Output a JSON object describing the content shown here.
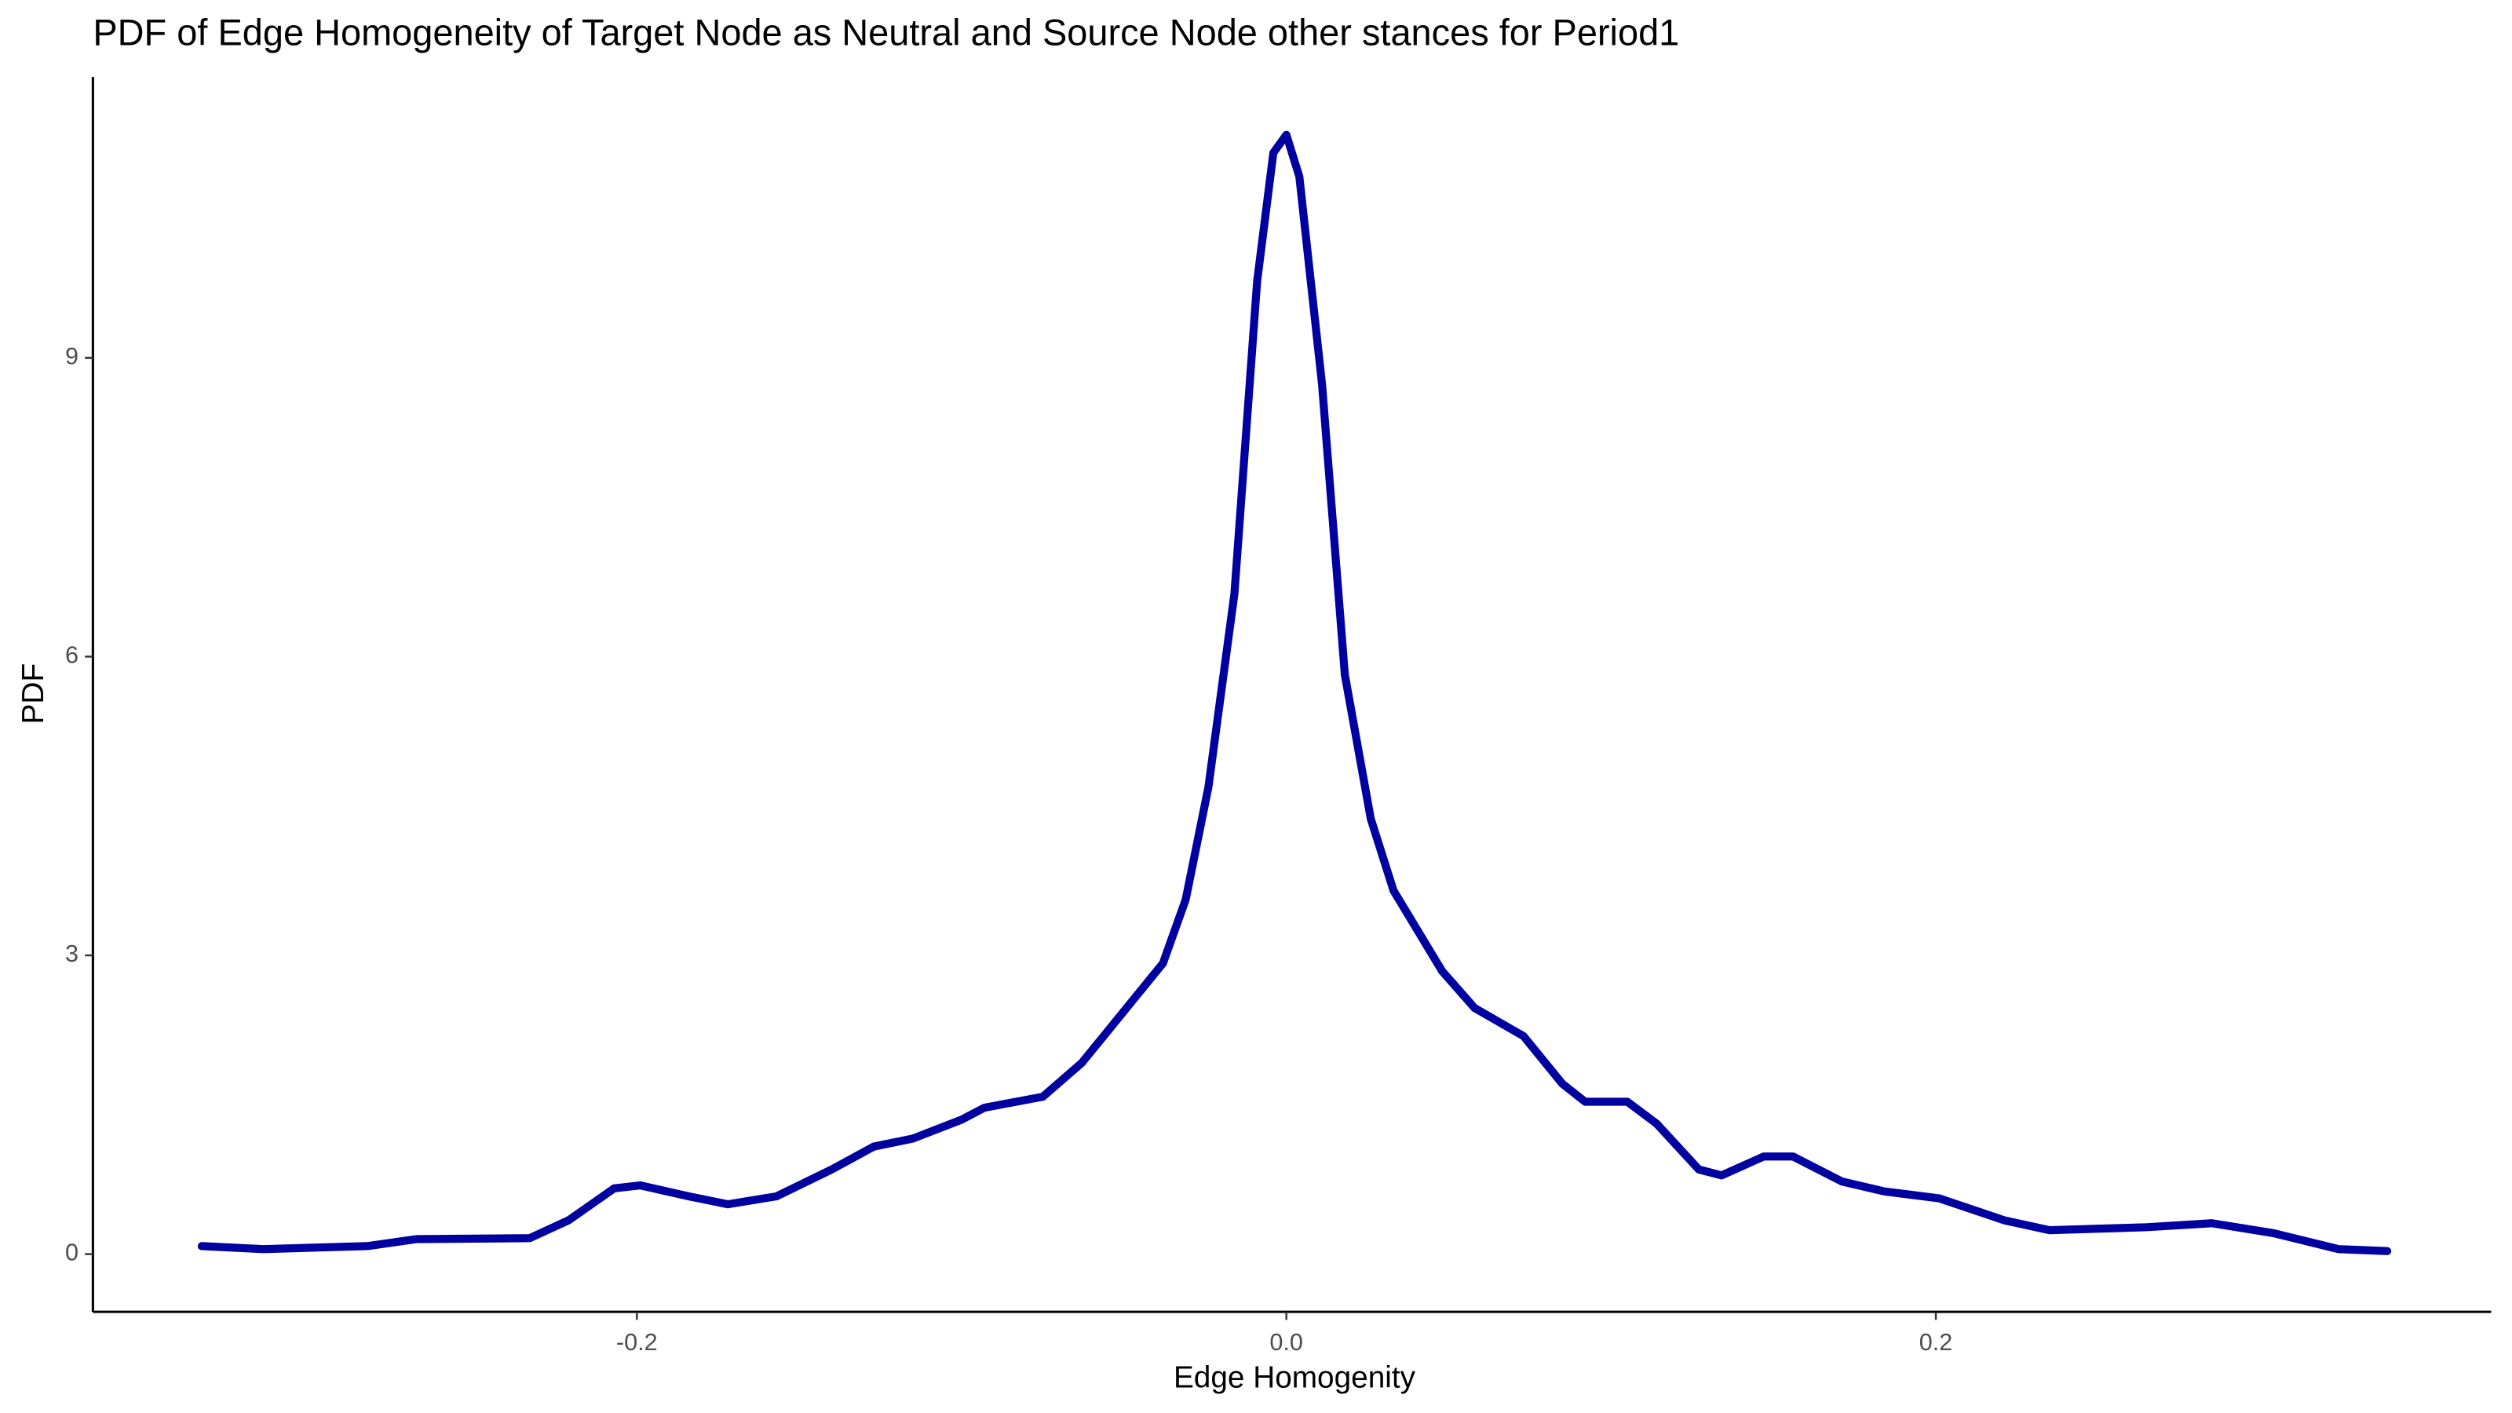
{
  "chart_data": {
    "type": "line",
    "title": "PDF of Edge Homogeneity of Target Node as Neutral and Source Node other stances for Period1",
    "x_label": "Edge Homogenity",
    "y_label": "PDF",
    "x": [
      -0.334,
      -0.315,
      -0.283,
      -0.268,
      -0.233,
      -0.221,
      -0.207,
      -0.199,
      -0.184,
      -0.172,
      -0.157,
      -0.14,
      -0.127,
      -0.115,
      -0.1,
      -0.093,
      -0.075,
      -0.063,
      -0.051,
      -0.038,
      -0.031,
      -0.024,
      -0.016,
      -0.009,
      -0.004,
      0.0,
      0.004,
      0.011,
      0.018,
      0.026,
      0.033,
      0.048,
      0.058,
      0.073,
      0.085,
      0.092,
      0.105,
      0.114,
      0.127,
      0.134,
      0.147,
      0.156,
      0.171,
      0.184,
      0.201,
      0.221,
      0.235,
      0.255,
      0.265,
      0.285,
      0.304,
      0.324,
      0.339
    ],
    "series": [
      {
        "color": "#0000a0",
        "values": [
          0.08,
          0.05,
          0.08,
          0.15,
          0.16,
          0.34,
          0.66,
          0.69,
          0.58,
          0.5,
          0.58,
          0.85,
          1.08,
          1.16,
          1.35,
          1.47,
          1.58,
          1.92,
          2.4,
          2.92,
          3.56,
          4.69,
          6.63,
          9.77,
          11.06,
          11.24,
          10.82,
          8.73,
          5.82,
          4.37,
          3.65,
          2.84,
          2.47,
          2.19,
          1.71,
          1.53,
          1.53,
          1.31,
          0.85,
          0.79,
          0.98,
          0.98,
          0.73,
          0.63,
          0.56,
          0.34,
          0.24,
          0.26,
          0.27,
          0.31,
          0.21,
          0.05,
          0.03
        ]
      }
    ],
    "xlim": [
      -0.3675,
      0.371
    ],
    "ylim": [
      -0.58,
      11.82
    ],
    "xticks": [
      -0.2,
      {
        "value": 0,
        "label": "0.0"
      },
      0.2
    ],
    "yticks": [
      0,
      3,
      6,
      9
    ],
    "grid": false
  }
}
